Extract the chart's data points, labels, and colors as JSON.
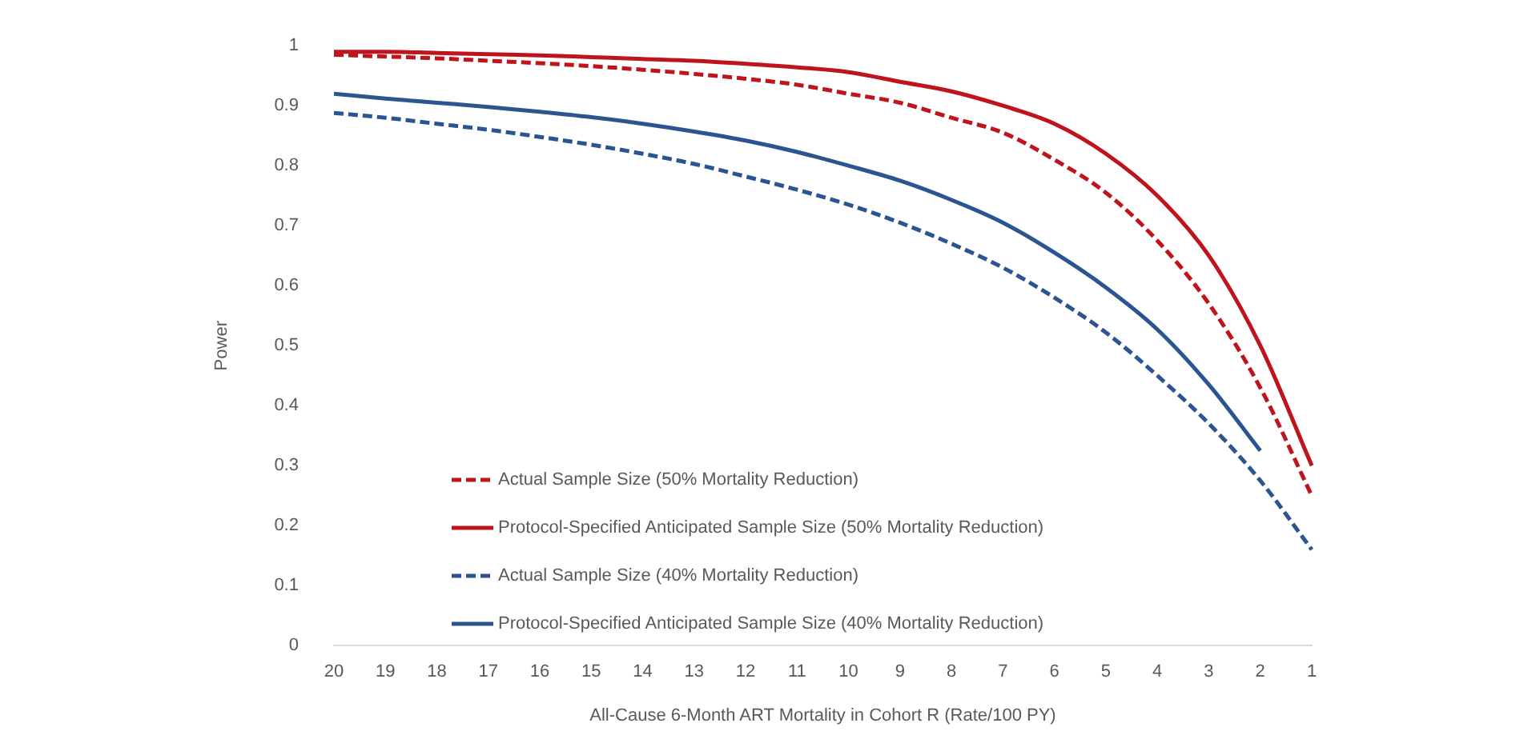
{
  "chart_data": {
    "type": "line",
    "xlabel": "All-Cause 6-Month ART Mortality in Cohort R (Rate/100 PY)",
    "ylabel": "Power",
    "categories": [
      "20",
      "19",
      "18",
      "17",
      "16",
      "15",
      "14",
      "13",
      "12",
      "11",
      "10",
      "9",
      "8",
      "7",
      "6",
      "5",
      "4",
      "3",
      "2",
      "1"
    ],
    "ylim": [
      0,
      1
    ],
    "yticks": [
      0,
      {
        "value": 0.1,
        "label": "0.1"
      },
      {
        "value": 0.2,
        "label": "0.2"
      },
      {
        "value": 0.3,
        "label": "0.3"
      },
      {
        "value": 0.4,
        "label": "0.4"
      },
      {
        "value": 0.5,
        "label": "0.5"
      },
      {
        "value": 0.6,
        "label": "0.6"
      },
      {
        "value": 0.7,
        "label": "0.7"
      },
      {
        "value": 0.8,
        "label": "0.8"
      },
      {
        "value": 0.9,
        "label": "0.9"
      },
      1
    ],
    "legend": "bottom left",
    "marker": "none",
    "series": [
      {
        "name": "Actual Sample Size (50% Mortality Reduction)",
        "color": "#c0141c",
        "line_style": "dashed",
        "values": [
          0.985,
          0.982,
          0.979,
          0.975,
          0.971,
          0.966,
          0.96,
          0.953,
          0.945,
          0.935,
          0.92,
          0.905,
          0.88,
          0.855,
          0.81,
          0.755,
          0.675,
          0.57,
          0.43,
          0.25
        ]
      },
      {
        "name": "Protocol-Specified Anticipated Sample Size (50% Mortality Reduction)",
        "color": "#c0141c",
        "line_style": "solid",
        "values": [
          0.99,
          0.99,
          0.988,
          0.986,
          0.984,
          0.981,
          0.978,
          0.975,
          0.97,
          0.964,
          0.956,
          0.94,
          0.924,
          0.9,
          0.87,
          0.82,
          0.75,
          0.65,
          0.5,
          0.3
        ]
      },
      {
        "name": "Actual Sample Size (40% Mortality Reduction)",
        "color": "#2b5590",
        "line_style": "dashed",
        "values": [
          0.888,
          0.88,
          0.87,
          0.86,
          0.848,
          0.835,
          0.82,
          0.803,
          0.782,
          0.76,
          0.735,
          0.705,
          0.67,
          0.63,
          0.58,
          0.522,
          0.45,
          0.37,
          0.275,
          0.16
        ]
      },
      {
        "name": "Protocol-Specified Anticipated Sample Size (40% Mortality Reduction)",
        "color": "#2b5590",
        "line_style": "solid",
        "values": [
          0.92,
          0.912,
          0.905,
          0.898,
          0.89,
          0.881,
          0.87,
          0.857,
          0.842,
          0.823,
          0.8,
          0.775,
          0.743,
          0.705,
          0.655,
          0.597,
          0.527,
          0.435,
          0.325,
          null
        ]
      }
    ]
  }
}
